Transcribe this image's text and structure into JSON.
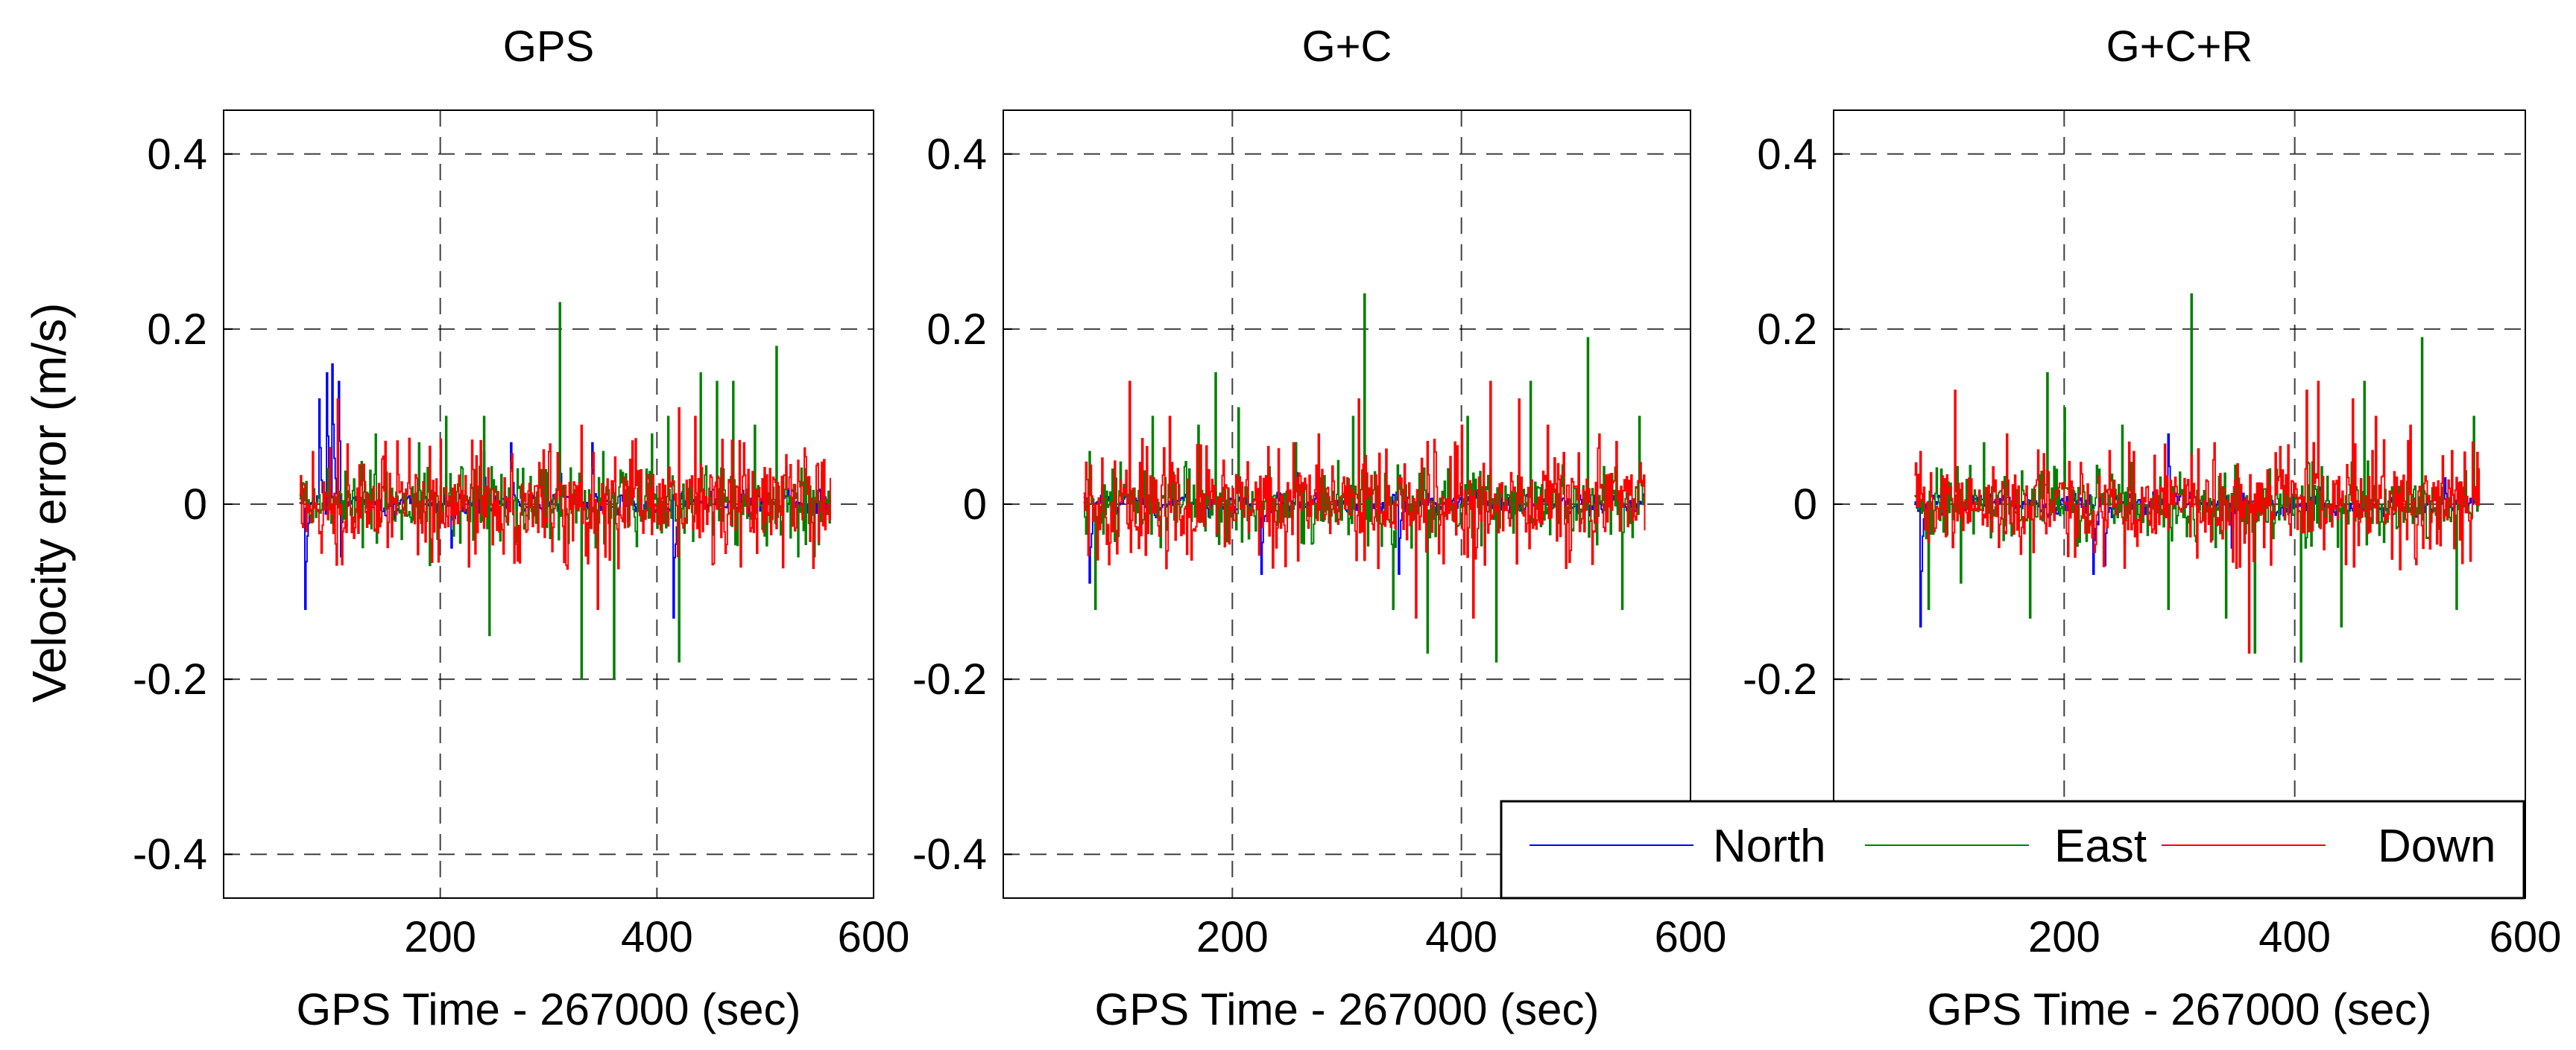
{
  "chart_data": [
    {
      "type": "line",
      "title": "GPS",
      "xlabel": "GPS Time - 267000 (sec)",
      "ylabel": "Velocity error (m/s)",
      "xlim": [
        0,
        600
      ],
      "ylim": [
        -0.45,
        0.45
      ],
      "xticks": [
        200,
        400,
        600
      ],
      "yticks": [
        -0.4,
        -0.2,
        0,
        0.2,
        0.4
      ],
      "ytick_labels": [
        "-0.4",
        "-0.2",
        "0",
        "0.2",
        "0.4"
      ],
      "grid": true,
      "x_range": [
        70,
        560
      ],
      "peaks": {
        "North": [
          [
            75,
            -0.12
          ],
          [
            88,
            0.12
          ],
          [
            95,
            0.15
          ],
          [
            100,
            0.16
          ],
          [
            106,
            0.14
          ],
          [
            108,
            -0.06
          ],
          [
            210,
            -0.05
          ],
          [
            240,
            0.06
          ],
          [
            265,
            0.07
          ],
          [
            310,
            0.06
          ],
          [
            340,
            0.07
          ],
          [
            415,
            -0.13
          ]
        ],
        "East": [
          [
            140,
            0.08
          ],
          [
            180,
            0.07
          ],
          [
            190,
            -0.07
          ],
          [
            205,
            0.1
          ],
          [
            240,
            0.1
          ],
          [
            245,
            -0.15
          ],
          [
            310,
            0.23
          ],
          [
            330,
            -0.2
          ],
          [
            350,
            0.06
          ],
          [
            360,
            -0.2
          ],
          [
            395,
            0.08
          ],
          [
            410,
            0.1
          ],
          [
            420,
            -0.18
          ],
          [
            440,
            0.15
          ],
          [
            455,
            0.14
          ],
          [
            470,
            0.14
          ],
          [
            490,
            0.09
          ],
          [
            510,
            0.18
          ],
          [
            530,
            -0.06
          ],
          [
            545,
            -0.06
          ]
        ],
        "Down": [
          [
            82,
            0.06
          ],
          [
            105,
            0.12
          ],
          [
            300,
            0.06
          ],
          [
            330,
            0.09
          ],
          [
            345,
            -0.12
          ],
          [
            420,
            0.11
          ],
          [
            435,
            0.1
          ],
          [
            480,
            0.07
          ],
          [
            530,
            0.05
          ]
        ]
      }
    },
    {
      "type": "line",
      "title": "G+C",
      "xlabel": "GPS Time - 267000 (sec)",
      "ylabel": "",
      "xlim": [
        0,
        600
      ],
      "ylim": [
        -0.45,
        0.45
      ],
      "xticks": [
        200,
        400,
        600
      ],
      "yticks": [
        -0.4,
        -0.2,
        0,
        0.2,
        0.4
      ],
      "ytick_labels": [
        "-0.4",
        "-0.2",
        "0",
        "0.2",
        "0.4"
      ],
      "grid": true,
      "x_range": [
        70,
        560
      ],
      "peaks": {
        "North": [
          [
            75,
            -0.09
          ],
          [
            225,
            -0.08
          ],
          [
            255,
            0.07
          ],
          [
            345,
            -0.08
          ],
          [
            530,
            0.03
          ]
        ],
        "East": [
          [
            75,
            0.06
          ],
          [
            80,
            -0.12
          ],
          [
            130,
            0.1
          ],
          [
            170,
            0.09
          ],
          [
            185,
            0.15
          ],
          [
            205,
            0.11
          ],
          [
            255,
            0.07
          ],
          [
            305,
            0.1
          ],
          [
            315,
            0.24
          ],
          [
            340,
            -0.12
          ],
          [
            370,
            -0.17
          ],
          [
            405,
            0.1
          ],
          [
            430,
            -0.18
          ],
          [
            460,
            0.14
          ],
          [
            510,
            0.19
          ],
          [
            540,
            -0.12
          ],
          [
            555,
            0.1
          ]
        ],
        "Down": [
          [
            110,
            0.14
          ],
          [
            145,
            0.1
          ],
          [
            275,
            0.08
          ],
          [
            310,
            0.12
          ],
          [
            360,
            -0.13
          ],
          [
            400,
            0.09
          ],
          [
            410,
            -0.13
          ],
          [
            425,
            0.14
          ],
          [
            450,
            0.12
          ],
          [
            475,
            0.09
          ],
          [
            520,
            0.08
          ]
        ]
      }
    },
    {
      "type": "line",
      "title": "G+C+R",
      "xlabel": "GPS Time - 267000 (sec)",
      "ylabel": "",
      "xlim": [
        0,
        600
      ],
      "ylim": [
        -0.45,
        0.45
      ],
      "xticks": [
        200,
        400,
        600
      ],
      "yticks": [
        -0.4,
        -0.2,
        0,
        0.2,
        0.4
      ],
      "ytick_labels": [
        "-0.4",
        "-0.2",
        "0",
        "0.2",
        "0.4"
      ],
      "grid": true,
      "x_range": [
        70,
        560
      ],
      "peaks": {
        "North": [
          [
            75,
            -0.14
          ],
          [
            225,
            -0.08
          ],
          [
            235,
            -0.07
          ],
          [
            290,
            0.08
          ],
          [
            345,
            -0.05
          ],
          [
            530,
            0.03
          ]
        ],
        "East": [
          [
            82,
            -0.12
          ],
          [
            110,
            -0.09
          ],
          [
            130,
            0.07
          ],
          [
            170,
            -0.13
          ],
          [
            185,
            0.15
          ],
          [
            200,
            0.11
          ],
          [
            250,
            0.09
          ],
          [
            290,
            -0.12
          ],
          [
            310,
            0.24
          ],
          [
            340,
            -0.13
          ],
          [
            365,
            -0.17
          ],
          [
            405,
            -0.18
          ],
          [
            440,
            -0.14
          ],
          [
            460,
            0.14
          ],
          [
            510,
            0.19
          ],
          [
            540,
            -0.12
          ],
          [
            555,
            0.1
          ]
        ],
        "Down": [
          [
            75,
            0.06
          ],
          [
            105,
            0.13
          ],
          [
            150,
            0.08
          ],
          [
            260,
            0.06
          ],
          [
            330,
            0.07
          ],
          [
            360,
            -0.17
          ],
          [
            410,
            0.13
          ],
          [
            420,
            0.14
          ],
          [
            450,
            0.12
          ],
          [
            470,
            0.1
          ],
          [
            500,
            0.09
          ]
        ]
      }
    }
  ],
  "legend": {
    "placement": "lower-right",
    "entries": [
      {
        "label": "North",
        "color": "#0000ff"
      },
      {
        "label": "East",
        "color": "#008000"
      },
      {
        "label": "Down",
        "color": "#ff0000"
      }
    ]
  },
  "colors": {
    "North": "#0000ff",
    "East": "#008000",
    "Down": "#ff0000",
    "grid": "#000000"
  }
}
